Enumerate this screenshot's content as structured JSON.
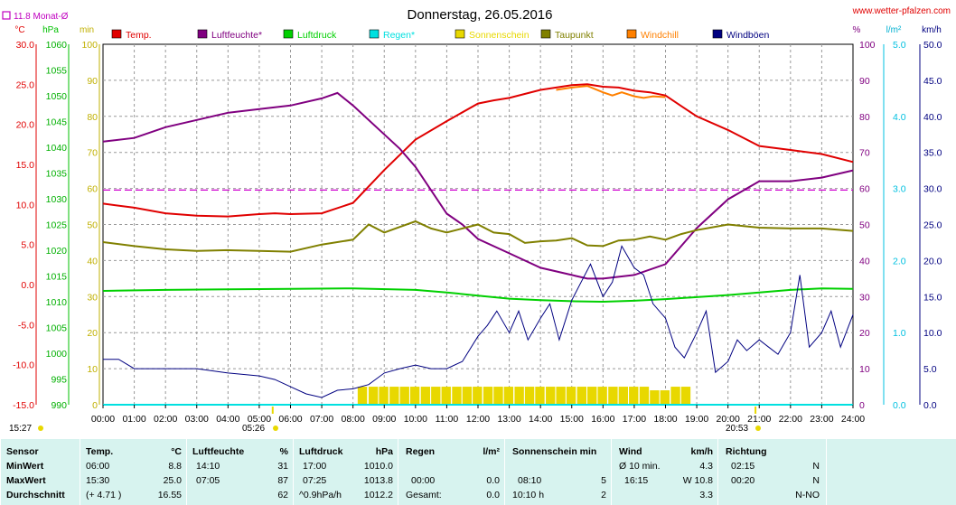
{
  "header": {
    "title": "Donnerstag, 26.05.2016",
    "site": "www.wetter-pfalzen.com",
    "monthly_avg": "11.8 Monat-Ø",
    "unit_temp": "°C",
    "unit_hpa": "hPa",
    "unit_min": "min",
    "unit_pct": "%",
    "unit_lm2": "l/m²",
    "unit_kmh": "km/h"
  },
  "legend": [
    {
      "label": "Temp.",
      "color": "#e00000"
    },
    {
      "label": "Luftfeuchte*",
      "color": "#800080"
    },
    {
      "label": "Luftdruck",
      "color": "#00d000"
    },
    {
      "label": "Regen*",
      "color": "#00e0e0"
    },
    {
      "label": "Sonnenschein",
      "color": "#e8d800"
    },
    {
      "label": "Taupunkt",
      "color": "#808000"
    },
    {
      "label": "Windchill",
      "color": "#ff8000"
    },
    {
      "label": "Windböen",
      "color": "#000080"
    }
  ],
  "axes": {
    "temp_ticks": [
      "30.0",
      "25.0",
      "20.0",
      "15.0",
      "10.0",
      "5.0",
      "0.0",
      "-5.0",
      "-10.0",
      "-15.0"
    ],
    "hpa_ticks": [
      "1060",
      "1055",
      "1050",
      "1045",
      "1040",
      "1035",
      "1030",
      "1025",
      "1020",
      "1015",
      "1010",
      "1005",
      "1000",
      "995",
      "990"
    ],
    "min_ticks": [
      "100",
      "90",
      "80",
      "70",
      "60",
      "50",
      "40",
      "30",
      "20",
      "10",
      "0"
    ],
    "pct_ticks": [
      "100",
      "90",
      "80",
      "70",
      "60",
      "50",
      "40",
      "30",
      "20",
      "10",
      "0"
    ],
    "rain_ticks": [
      "5.0",
      "4.0",
      "3.0",
      "2.0",
      "1.0",
      "0.0"
    ],
    "kmh_ticks": [
      "50.0",
      "45.0",
      "40.0",
      "35.0",
      "30.0",
      "25.0",
      "20.0",
      "15.0",
      "10.0",
      "5.0",
      "0.0"
    ],
    "x_ticks": [
      "00:00",
      "01:00",
      "02:00",
      "03:00",
      "04:00",
      "05:00",
      "06:00",
      "07:00",
      "08:00",
      "09:00",
      "10:00",
      "11:00",
      "12:00",
      "13:00",
      "14:00",
      "15:00",
      "16:00",
      "17:00",
      "18:00",
      "19:00",
      "20:00",
      "21:00",
      "22:00",
      "23:00",
      "24:00"
    ],
    "sunrise": "05:26",
    "sunset": "20:53",
    "current_time": "15:27"
  },
  "chart_data": {
    "type": "line",
    "title": "Donnerstag, 26.05.2016",
    "x_unit": "hours",
    "monthly_avg_temp": 11.8,
    "series": [
      {
        "name": "Temp.",
        "color": "#e00000",
        "axis": "temp",
        "x": [
          0,
          1,
          2,
          3,
          4,
          5,
          5.5,
          6,
          7,
          8,
          9,
          10,
          11,
          12,
          12.5,
          13,
          14,
          14.5,
          15,
          15.5,
          16,
          16.5,
          17,
          17.5,
          18,
          18.5,
          19,
          20,
          21,
          22,
          23,
          24
        ],
        "y": [
          10.1,
          9.6,
          8.9,
          8.6,
          8.5,
          8.8,
          8.9,
          8.8,
          8.9,
          10.2,
          14.3,
          18.1,
          20.4,
          22.6,
          23.0,
          23.3,
          24.3,
          24.6,
          24.9,
          25.0,
          24.7,
          24.6,
          24.2,
          24.0,
          23.6,
          22.3,
          21.0,
          19.3,
          17.3,
          16.8,
          16.3,
          15.3
        ]
      },
      {
        "name": "Windchill",
        "color": "#ff8000",
        "axis": "temp",
        "x": [
          14.5,
          15,
          15.5,
          16,
          16.3,
          16.6,
          17,
          17.3,
          17.6,
          18
        ],
        "y": [
          24.3,
          24.6,
          24.8,
          24.0,
          23.6,
          24.0,
          23.5,
          23.3,
          23.5,
          23.4
        ]
      },
      {
        "name": "Luftfeuchte*",
        "color": "#800080",
        "axis": "pct",
        "x": [
          0,
          1,
          2,
          3,
          4,
          5,
          6,
          7,
          7.5,
          8,
          9,
          9.5,
          10,
          11,
          11.5,
          12,
          13,
          14,
          15,
          15.5,
          16,
          17,
          18,
          19,
          20,
          21,
          22,
          23,
          24
        ],
        "y": [
          73,
          74,
          77,
          79,
          81,
          82,
          83,
          85,
          86.5,
          83,
          75,
          71,
          66,
          53,
          50,
          46,
          42,
          38,
          36,
          35,
          35,
          36,
          39,
          49,
          57,
          62,
          62,
          63,
          65
        ]
      },
      {
        "name": "Luftdruck",
        "color": "#00d000",
        "axis": "hpa",
        "x": [
          0,
          2,
          4,
          6,
          8,
          10,
          11,
          12,
          13,
          14,
          15,
          16,
          17,
          18,
          19,
          20,
          21,
          22,
          23,
          24
        ],
        "y": [
          1012.1,
          1012.3,
          1012.4,
          1012.5,
          1012.6,
          1012.3,
          1011.8,
          1011.2,
          1010.6,
          1010.3,
          1010.1,
          1010.0,
          1010.2,
          1010.5,
          1010.9,
          1011.3,
          1011.8,
          1012.3,
          1012.6,
          1012.5
        ]
      },
      {
        "name": "Taupunkt",
        "color": "#808000",
        "axis": "temp",
        "x": [
          0,
          1,
          2,
          3,
          4,
          5,
          6,
          7,
          8,
          8.5,
          9,
          9.5,
          10,
          10.5,
          11,
          11.5,
          12,
          12.5,
          13,
          13.5,
          14,
          14.5,
          15,
          15.5,
          16,
          16.5,
          17,
          17.5,
          18,
          18.5,
          19,
          20,
          21,
          22,
          23,
          24
        ],
        "y": [
          5.3,
          4.8,
          4.4,
          4.2,
          4.3,
          4.2,
          4.1,
          5.0,
          5.6,
          7.5,
          6.5,
          7.2,
          7.9,
          7.0,
          6.5,
          7.0,
          7.5,
          6.5,
          6.3,
          5.2,
          5.4,
          5.5,
          5.8,
          4.9,
          4.8,
          5.5,
          5.6,
          6.0,
          5.6,
          6.3,
          6.8,
          7.5,
          7.1,
          7.0,
          7.0,
          6.7
        ]
      },
      {
        "name": "Windböen",
        "color": "#000080",
        "axis": "kmh",
        "x": [
          0,
          0.5,
          1,
          2,
          3,
          4,
          5,
          5.5,
          6,
          6.5,
          7,
          7.5,
          8,
          8.5,
          9,
          9.5,
          10,
          10.5,
          11,
          11.5,
          12,
          12.3,
          12.6,
          13,
          13.3,
          13.6,
          14,
          14.3,
          14.6,
          15,
          15.3,
          15.6,
          16,
          16.3,
          16.6,
          17,
          17.3,
          17.6,
          18,
          18.3,
          18.6,
          19,
          19.3,
          19.6,
          20,
          20.3,
          20.6,
          21,
          21.3,
          21.6,
          22,
          22.3,
          22.6,
          23,
          23.3,
          23.6,
          24
        ],
        "y": [
          6.3,
          6.3,
          5.0,
          5.0,
          5.0,
          4.4,
          4.0,
          3.5,
          2.5,
          1.5,
          1.0,
          2.0,
          2.2,
          2.8,
          4.4,
          5.0,
          5.5,
          5.0,
          5.0,
          6.0,
          9.5,
          11.0,
          13.0,
          10.0,
          13.0,
          9.0,
          12.0,
          14.0,
          9.0,
          14.5,
          17.0,
          19.5,
          15.0,
          17.0,
          22.0,
          19.0,
          18.0,
          14.0,
          12.0,
          8.0,
          6.5,
          10.0,
          13.0,
          4.5,
          6.0,
          9.0,
          7.5,
          9.0,
          8.0,
          7.0,
          10.0,
          18.0,
          8.0,
          10.0,
          13.0,
          8.0,
          12.5
        ]
      },
      {
        "name": "Sonnenschein",
        "color": "#e8d800",
        "axis": "min",
        "kind": "bars",
        "x": [
          8.15,
          8.5,
          8.83,
          9.17,
          9.5,
          9.83,
          10.17,
          10.5,
          10.83,
          11.17,
          11.5,
          11.83,
          12.17,
          12.5,
          12.83,
          13.17,
          13.5,
          13.83,
          14.17,
          14.5,
          14.83,
          15.17,
          15.5,
          15.83,
          16.17,
          16.5,
          16.83,
          17.17,
          17.5,
          17.83,
          18.17,
          18.5
        ],
        "y": [
          5,
          5,
          5,
          5,
          5,
          5,
          5,
          5,
          5,
          5,
          5,
          5,
          5,
          5,
          5,
          5,
          5,
          5,
          5,
          5,
          5,
          5,
          5,
          5,
          5,
          5,
          5,
          5,
          4,
          4,
          5,
          5
        ]
      },
      {
        "name": "Regen*",
        "color": "#00e0e0",
        "axis": "rain",
        "x": [
          0,
          24
        ],
        "y": [
          0,
          0
        ]
      }
    ],
    "axes": {
      "temp": [
        -15,
        30
      ],
      "hpa": [
        990,
        1060
      ],
      "min": [
        0,
        100
      ],
      "pct": [
        0,
        100
      ],
      "rain": [
        0,
        5
      ],
      "kmh": [
        0,
        50
      ],
      "x": [
        0,
        24
      ]
    }
  },
  "table": {
    "sensor": {
      "head": "Sensor",
      "rows": [
        "MinWert",
        "MaxWert",
        "Durchschnitt"
      ]
    },
    "temp": {
      "head": "Temp.",
      "unit": "°C",
      "rows": [
        [
          "06:00",
          "8.8"
        ],
        [
          "15:30",
          "25.0"
        ],
        [
          "(+ 4.71 )",
          "16.55"
        ]
      ]
    },
    "hum": {
      "head": "Luftfeuchte",
      "unit": "%",
      "rows": [
        [
          "14:10",
          "31"
        ],
        [
          "07:05",
          "87"
        ],
        [
          "",
          "62"
        ]
      ]
    },
    "press": {
      "head": "Luftdruck",
      "unit": "hPa",
      "rows": [
        [
          "17:00",
          "1010.0"
        ],
        [
          "07:25",
          "1013.8"
        ],
        [
          "^0.9hPa/h",
          "1012.2"
        ]
      ]
    },
    "rain": {
      "head": "Regen",
      "unit": "l/m²",
      "rows": [
        [
          "",
          ""
        ],
        [
          "00:00",
          "0.0"
        ],
        [
          "Gesamt:",
          "0.0"
        ]
      ]
    },
    "sun": {
      "head": "Sonnenschein min",
      "rows": [
        [
          "",
          ""
        ],
        [
          "08:10",
          "5"
        ],
        [
          "10:10 h",
          "2"
        ]
      ]
    },
    "wind": {
      "head": "Wind",
      "unit": "km/h",
      "rows": [
        [
          "Ø 10 min.",
          "4.3"
        ],
        [
          "16:15",
          "W 10.8"
        ],
        [
          "",
          "3.3"
        ]
      ]
    },
    "dir": {
      "head": "Richtung",
      "rows": [
        [
          "02:15",
          "N"
        ],
        [
          "00:20",
          "N"
        ],
        [
          "",
          "N-NO"
        ]
      ]
    }
  }
}
